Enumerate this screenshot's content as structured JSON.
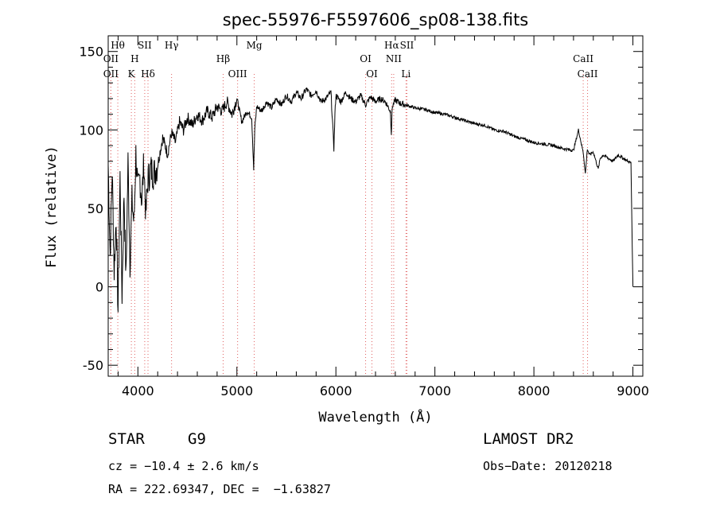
{
  "chart_data": {
    "type": "line",
    "title": "spec-55976-F5597606_sp08-138.fits",
    "xlabel": "Wavelength (Å)",
    "ylabel": "Flux (relative)",
    "xlim": [
      3700,
      9100
    ],
    "ylim": [
      -57,
      160
    ],
    "x_ticks": [
      4000,
      5000,
      6000,
      7000,
      8000,
      9000
    ],
    "y_ticks": [
      -50,
      0,
      50,
      100,
      150
    ],
    "series": [
      {
        "name": "flux",
        "x": [
          3700,
          3720,
          3740,
          3760,
          3780,
          3800,
          3820,
          3840,
          3860,
          3880,
          3900,
          3920,
          3940,
          3960,
          3980,
          4000,
          4020,
          4040,
          4060,
          4080,
          4100,
          4130,
          4160,
          4200,
          4250,
          4300,
          4340,
          4380,
          4420,
          4460,
          4500,
          4550,
          4600,
          4650,
          4700,
          4750,
          4800,
          4850,
          4900,
          4950,
          5000,
          5050,
          5100,
          5150,
          5170,
          5180,
          5200,
          5250,
          5300,
          5350,
          5400,
          5450,
          5500,
          5550,
          5600,
          5650,
          5700,
          5750,
          5800,
          5850,
          5900,
          5950,
          5980,
          5990,
          6000,
          6050,
          6100,
          6150,
          6200,
          6250,
          6300,
          6350,
          6400,
          6450,
          6500,
          6550,
          6560,
          6570,
          6600,
          6650,
          6700,
          6800,
          6900,
          7000,
          7100,
          7200,
          7300,
          7400,
          7500,
          7600,
          7700,
          7800,
          7900,
          8000,
          8100,
          8200,
          8300,
          8400,
          8450,
          8500,
          8520,
          8540,
          8560,
          8600,
          8650,
          8670,
          8700,
          8750,
          8800,
          8850,
          8900,
          8950,
          8980,
          8990,
          9000
        ],
        "values": [
          78,
          20,
          75,
          10,
          45,
          -15,
          70,
          -5,
          60,
          5,
          80,
          15,
          55,
          40,
          85,
          60,
          70,
          55,
          80,
          45,
          68,
          75,
          72,
          78,
          95,
          85,
          98,
          92,
          105,
          100,
          108,
          103,
          110,
          106,
          112,
          108,
          115,
          112,
          118,
          110,
          120,
          105,
          112,
          108,
          75,
          100,
          115,
          112,
          118,
          114,
          120,
          116,
          122,
          118,
          124,
          120,
          126,
          122,
          125,
          118,
          120,
          124,
          88,
          110,
          122,
          118,
          124,
          120,
          118,
          122,
          116,
          121,
          118,
          120,
          118,
          112,
          98,
          115,
          119,
          117,
          116,
          114,
          113,
          111,
          110,
          108,
          106,
          104,
          103,
          100,
          99,
          96,
          94,
          92,
          91,
          90,
          88,
          87,
          100,
          85,
          72,
          88,
          84,
          86,
          75,
          82,
          84,
          82,
          80,
          84,
          82,
          80,
          79,
          40,
          0
        ]
      }
    ],
    "emission_lines_top": [
      {
        "label": "Hθ",
        "wave": 3797
      },
      {
        "label": "OII",
        "wave": 3727
      },
      {
        "label": "SII",
        "wave": 4069
      },
      {
        "label": "H",
        "wave": 3968
      },
      {
        "label": "Hγ",
        "wave": 4340
      },
      {
        "label": "Hβ",
        "wave": 4861
      },
      {
        "label": "Mg",
        "wave": 5175
      },
      {
        "label": "OI",
        "wave": 6300
      },
      {
        "label": "Hα",
        "wave": 6563
      },
      {
        "label": "NII",
        "wave": 6584
      },
      {
        "label": "SII",
        "wave": 6717
      },
      {
        "label": "CaII",
        "wave": 8498
      }
    ],
    "emission_lines_bottom": [
      {
        "label": "OII",
        "wave": 3727
      },
      {
        "label": "K",
        "wave": 3934
      },
      {
        "label": "Hδ",
        "wave": 4102
      },
      {
        "label": "OIII",
        "wave": 5007
      },
      {
        "label": "OI",
        "wave": 6364
      },
      {
        "label": "Li",
        "wave": 6708
      },
      {
        "label": "CaII",
        "wave": 8542
      }
    ]
  },
  "info": {
    "object_class": "STAR",
    "subclass": "G9",
    "survey": "LAMOST DR2",
    "cz": "cz = −10.4 ± 2.6 km/s",
    "obs_date": "Obs−Date: 20120218",
    "coords": "RA = 222.69347, DEC =  −1.63827"
  }
}
